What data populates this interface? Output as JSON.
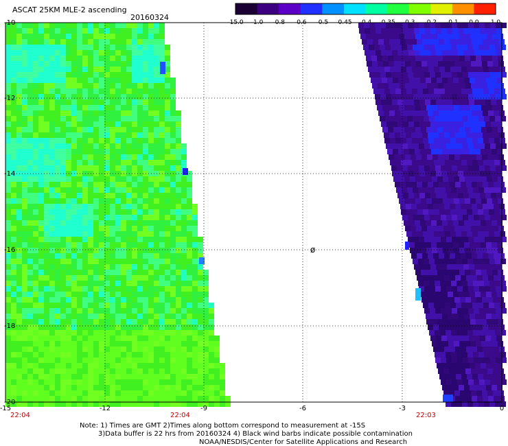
{
  "header": {
    "title": "ASCAT 25KM MLE-2 ascending",
    "date": "20160324"
  },
  "colorbar": {
    "ticks": [
      "-15.0",
      "-1.0",
      "-0.8",
      "-0.6",
      "-0.5",
      "-0.45",
      "-0.4",
      "-0.35",
      "-0.3",
      "-0.2",
      "-0.1",
      "0.0",
      "1.0"
    ],
    "colors": [
      "#1a0033",
      "#3c0080",
      "#5c00c8",
      "#2030ff",
      "#0090ff",
      "#00e0ff",
      "#00ffa0",
      "#20ff40",
      "#80ff00",
      "#e0f000",
      "#ff9000",
      "#ff2000"
    ]
  },
  "axes": {
    "lat_ticks": [
      "-10",
      "-12",
      "-14",
      "-16",
      "-18",
      "-20"
    ],
    "lon_ticks": [
      "-15",
      "-12",
      "-9",
      "-6",
      "-3",
      "0"
    ]
  },
  "swaths": {
    "west_time_left": "22:04",
    "west_time_right": "22:04",
    "east_time": "22:03",
    "west_color": "#30f030",
    "east_color": "#3a0a8a"
  },
  "island_label": "ø",
  "notes": {
    "line1": "Note: 1) Times are GMT 2)Times along bottom correspond to measurement at -15S",
    "line2": "3)Data buffer is 22 hrs from 20160324 4) Black wind barbs indicate possible contamination",
    "line3": "NOAA/NESDIS/Center for Satellite Applications and Research"
  }
}
